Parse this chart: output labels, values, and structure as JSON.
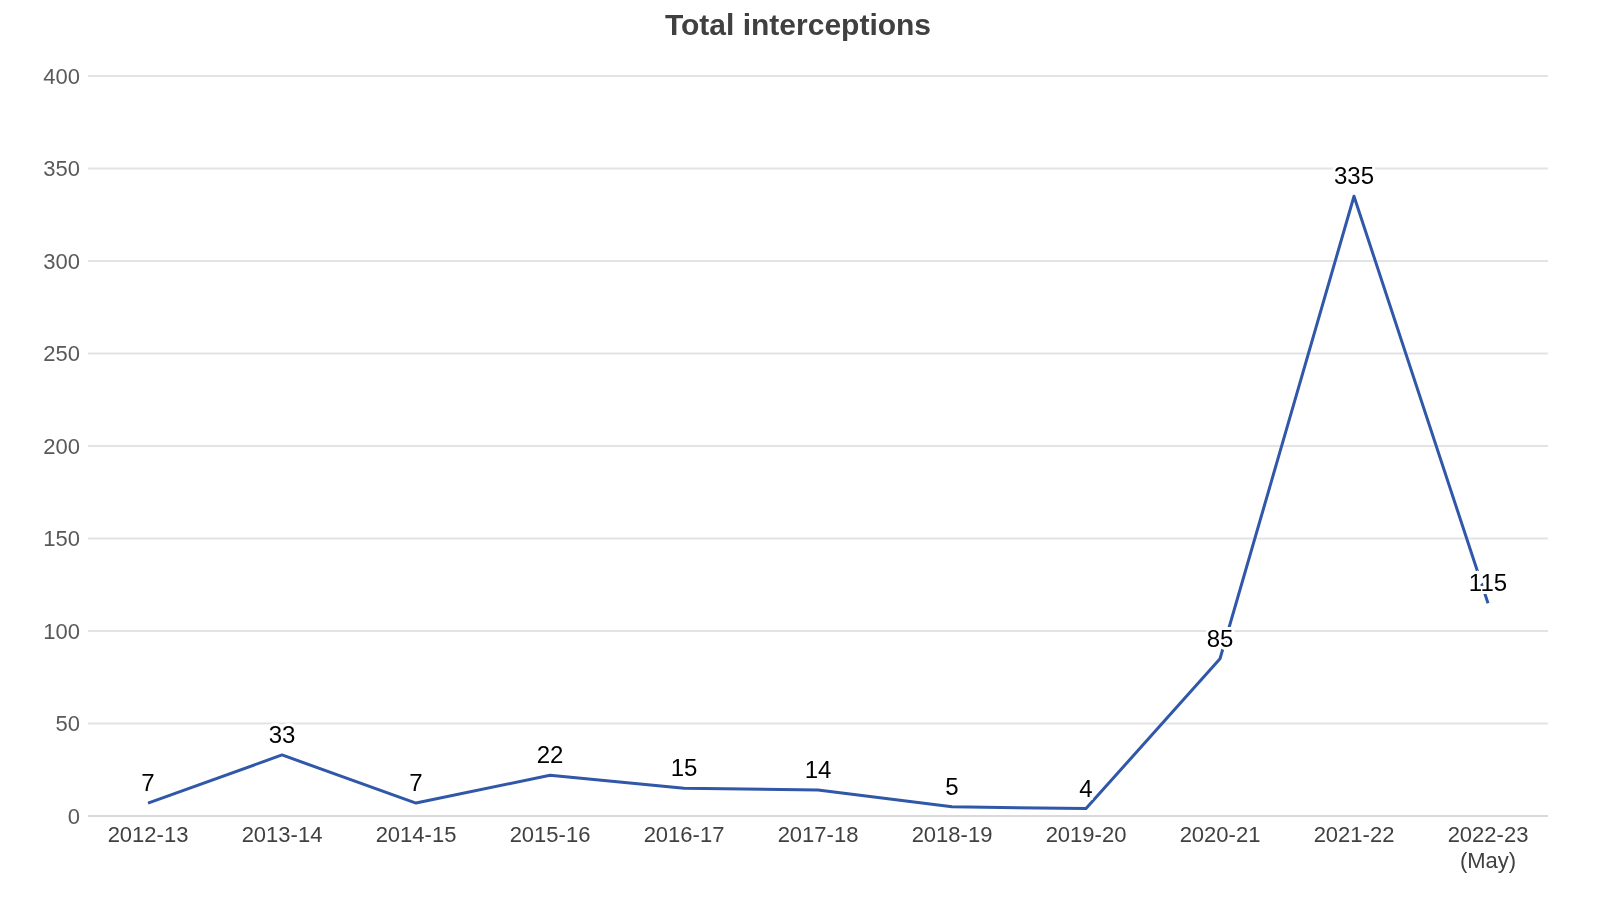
{
  "chart_data": {
    "type": "line",
    "title": "Total interceptions",
    "categories": [
      "2012-13",
      "2013-14",
      "2014-15",
      "2015-16",
      "2016-17",
      "2017-18",
      "2018-19",
      "2019-20",
      "2020-21",
      "2021-22",
      "2022-23 (May)"
    ],
    "series": [
      {
        "color": "#3057a8",
        "values": [
          7,
          33,
          7,
          22,
          15,
          14,
          5,
          4,
          85,
          335,
          115
        ]
      }
    ],
    "ylim": [
      0,
      400
    ],
    "yticks": [
      0,
      50,
      100,
      150,
      200,
      250,
      300,
      350,
      400
    ],
    "grid": "y",
    "marker": "none",
    "line_style": "solid",
    "data_labels": true
  }
}
